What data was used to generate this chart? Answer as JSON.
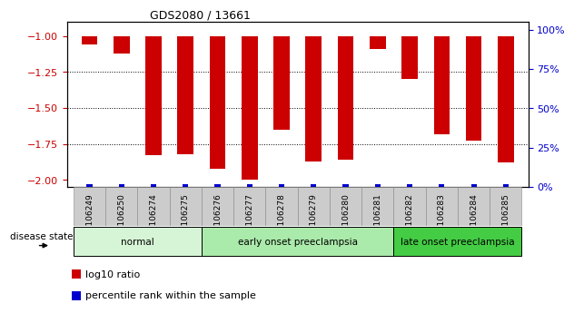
{
  "title": "GDS2080 / 13661",
  "samples": [
    "GSM106249",
    "GSM106250",
    "GSM106274",
    "GSM106275",
    "GSM106276",
    "GSM106277",
    "GSM106278",
    "GSM106279",
    "GSM106280",
    "GSM106281",
    "GSM106282",
    "GSM106283",
    "GSM106284",
    "GSM106285"
  ],
  "log10_ratio": [
    -1.06,
    -1.12,
    -1.83,
    -1.82,
    -1.92,
    -2.0,
    -1.65,
    -1.87,
    -1.86,
    -1.09,
    -1.3,
    -1.68,
    -1.73,
    -1.88
  ],
  "percentile_rank_pct": [
    2,
    2,
    2,
    2,
    2,
    2,
    2,
    2,
    2,
    2,
    2,
    2,
    2,
    2
  ],
  "ylim_left": [
    -2.05,
    -0.9
  ],
  "ylim_right": [
    -0.1,
    105
  ],
  "yticks_left": [
    -2.0,
    -1.75,
    -1.5,
    -1.25,
    -1.0
  ],
  "yticks_right": [
    0,
    25,
    50,
    75,
    100
  ],
  "ytick_labels_right": [
    "0%",
    "25%",
    "50%",
    "75%",
    "100%"
  ],
  "groups": [
    {
      "label": "normal",
      "start": 0,
      "end": 3,
      "color": "#d6f5d6"
    },
    {
      "label": "early onset preeclampsia",
      "start": 4,
      "end": 9,
      "color": "#aaeaaa"
    },
    {
      "label": "late onset preeclampsia",
      "start": 10,
      "end": 13,
      "color": "#44cc44"
    }
  ],
  "bar_color_red": "#cc0000",
  "bar_color_blue": "#0000cc",
  "grid_color": "#000000",
  "background_color": "#ffffff",
  "tick_color_left": "#cc0000",
  "tick_color_right": "#0000cc",
  "disease_state_label": "disease state",
  "legend_items": [
    {
      "color": "#cc0000",
      "label": "log10 ratio"
    },
    {
      "color": "#0000cc",
      "label": "percentile rank within the sample"
    }
  ],
  "xticklabel_bg": "#cccccc"
}
